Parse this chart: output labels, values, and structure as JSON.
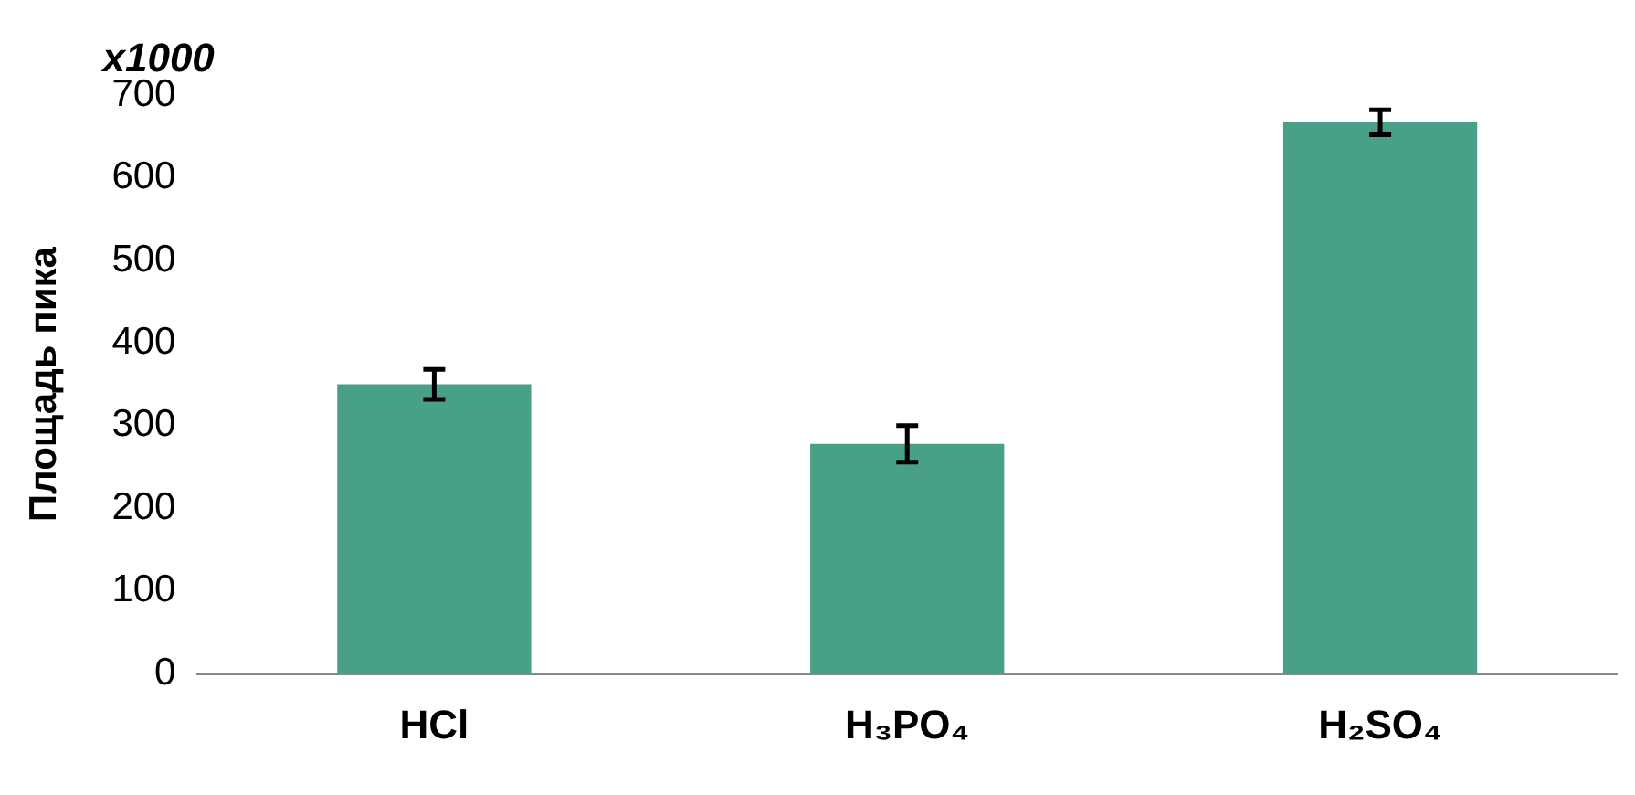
{
  "chart_data": {
    "type": "bar",
    "ylabel": "Площадь пика",
    "annotations": [
      "x1000"
    ],
    "categories": [
      "HCl",
      "H₃PO₄",
      "H₂SO₄"
    ],
    "values": [
      350,
      278,
      667
    ],
    "errors": [
      18,
      22,
      15
    ],
    "color": "#49a088",
    "ylim": [
      0,
      700
    ],
    "yticks": [
      0,
      100,
      200,
      300,
      400,
      500,
      600,
      700
    ],
    "grid": false,
    "legend": false
  }
}
